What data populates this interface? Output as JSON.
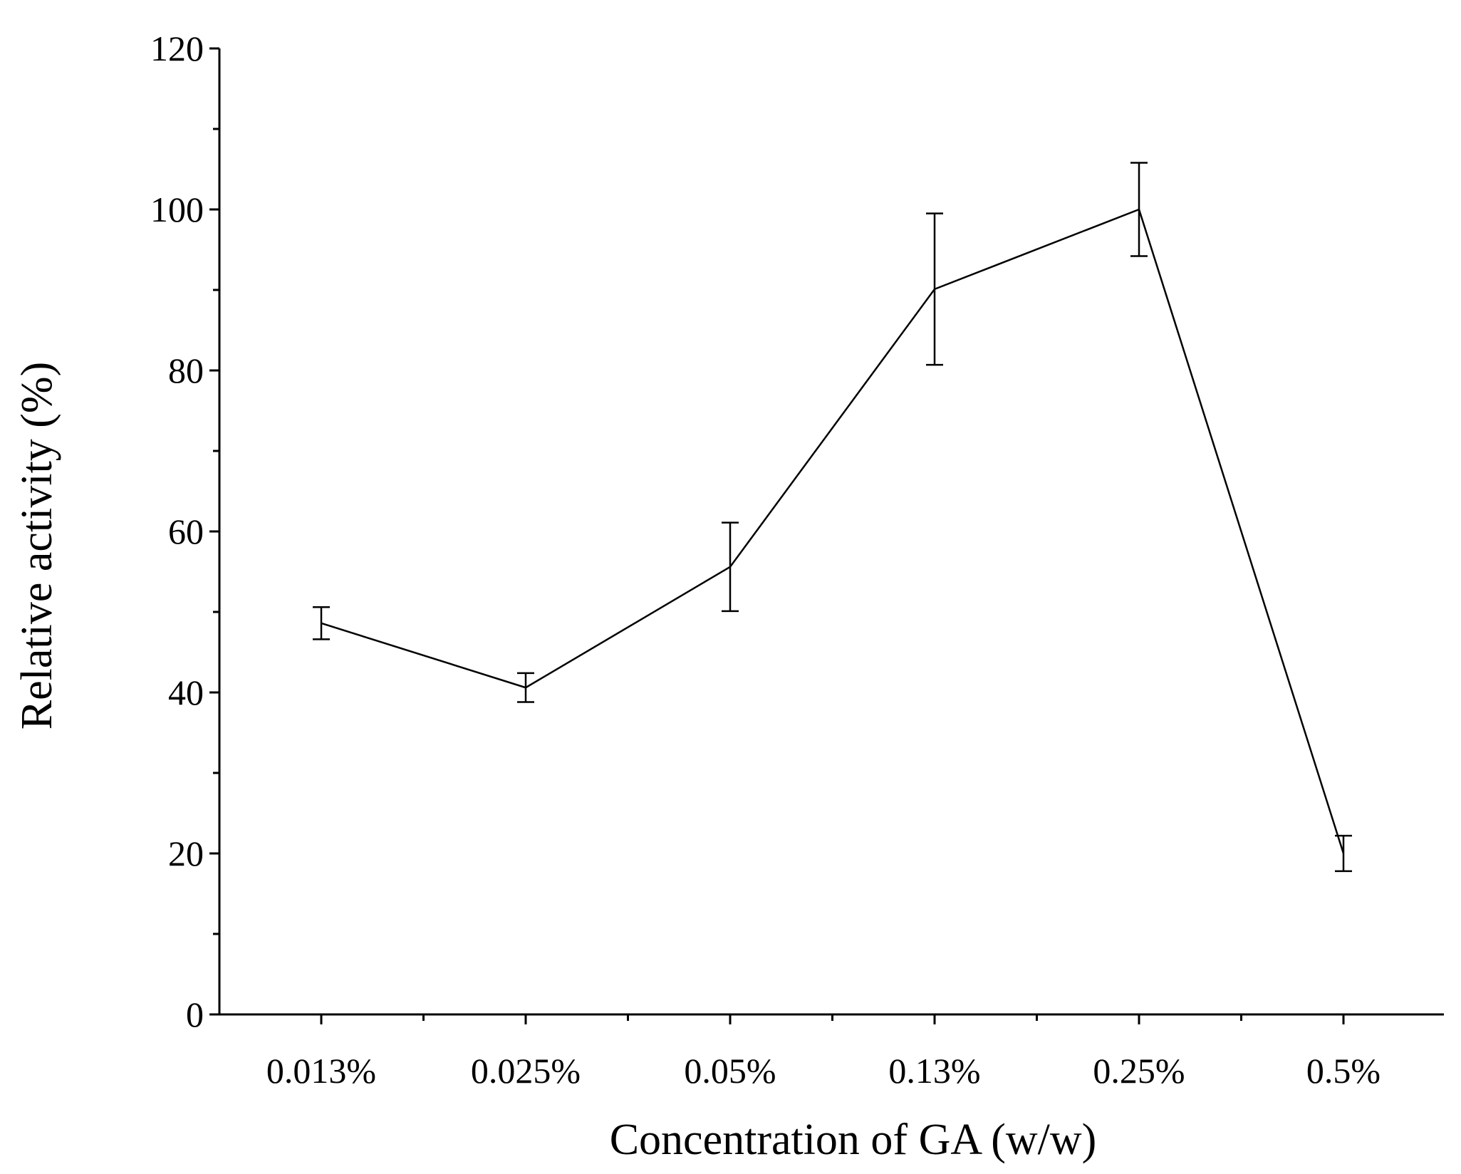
{
  "chart_data": {
    "type": "line",
    "title": "",
    "xlabel": "Concentration of GA (w/w)",
    "ylabel": "Relative activity (%)",
    "categories": [
      "0.013%",
      "0.025%",
      "0.05%",
      "0.13%",
      "0.25%",
      "0.5%"
    ],
    "series": [
      {
        "name": "Relative activity",
        "values": [
          48.6,
          40.6,
          55.6,
          90.1,
          100.0,
          20.0
        ],
        "errors": [
          2.0,
          1.8,
          5.5,
          9.4,
          5.8,
          2.2
        ]
      }
    ],
    "ylim": [
      0,
      120
    ],
    "yticks": [
      "0",
      "20",
      "40",
      "60",
      "80",
      "100",
      "120"
    ],
    "grid": false,
    "legend": "none"
  }
}
